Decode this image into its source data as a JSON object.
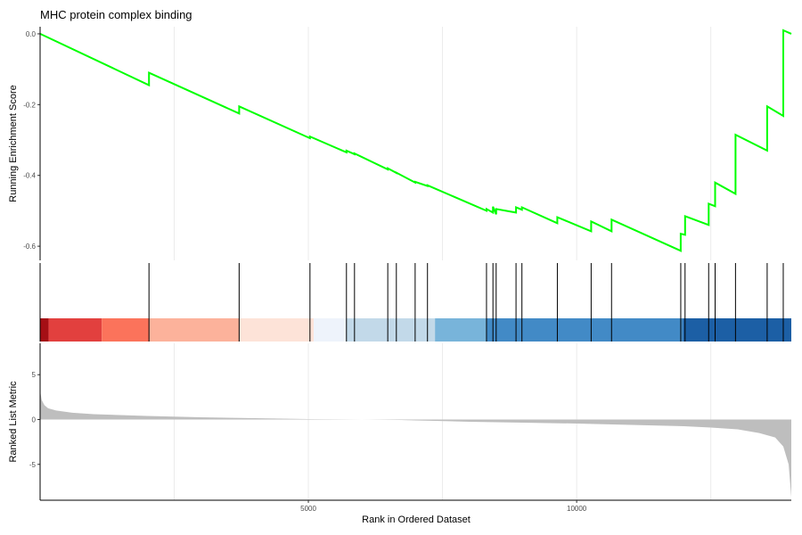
{
  "chart_data": {
    "type": "line",
    "title": "MHC protein complex binding",
    "xlabel": "Rank in Ordered Dataset",
    "x_ticks": [
      5000,
      10000
    ],
    "x_tick_labels": [
      "5000",
      "10000"
    ],
    "xlim": [
      1,
      14000
    ],
    "panels": [
      {
        "name": "running-enrichment-score",
        "ylabel": "Running Enrichment Score",
        "ylim": [
          -0.64,
          0.02
        ],
        "y_ticks": [
          0.0,
          -0.2,
          -0.4,
          -0.6
        ],
        "y_tick_labels": [
          "0.0",
          "-0.2",
          "-0.4",
          "-0.6"
        ],
        "line_color": "#00ff00",
        "series": [
          {
            "x": [
              1,
              2030,
              2030,
              3710,
              3710,
              5030,
              5030,
              5710,
              5710,
              5860,
              5860,
              6480,
              6480,
              6640,
              6640,
              6990,
              6990,
              7220,
              7220,
              8320,
              8320,
              8440,
              8440,
              8500,
              8500,
              8870,
              8870,
              8980,
              8980,
              9640,
              9640,
              10270,
              10270,
              10650,
              10650,
              11940,
              11940,
              12020,
              12020,
              12460,
              12460,
              12580,
              12580,
              12960,
              12960,
              13550,
              13550,
              13850,
              13850,
              14000
            ],
            "y": [
              0.0,
              -0.145,
              -0.11,
              -0.225,
              -0.205,
              -0.295,
              -0.29,
              -0.335,
              -0.33,
              -0.34,
              -0.338,
              -0.383,
              -0.38,
              -0.393,
              -0.392,
              -0.42,
              -0.418,
              -0.43,
              -0.428,
              -0.5,
              -0.495,
              -0.505,
              -0.488,
              -0.51,
              -0.495,
              -0.505,
              -0.49,
              -0.497,
              -0.49,
              -0.535,
              -0.518,
              -0.558,
              -0.53,
              -0.558,
              -0.525,
              -0.613,
              -0.565,
              -0.568,
              -0.515,
              -0.54,
              -0.48,
              -0.487,
              -0.42,
              -0.452,
              -0.285,
              -0.33,
              -0.205,
              -0.232,
              0.01,
              0.0
            ]
          }
        ]
      },
      {
        "name": "gene-hits",
        "hits": [
          2030,
          3710,
          5030,
          5710,
          5860,
          6480,
          6640,
          6990,
          7220,
          8320,
          8440,
          8500,
          8870,
          8980,
          9640,
          10270,
          10650,
          11940,
          12020,
          12460,
          12580,
          12960,
          13550,
          13850
        ],
        "rank_bands": [
          {
            "start": 1,
            "end": 160,
            "color": "#a50f15"
          },
          {
            "start": 160,
            "end": 1150,
            "color": "#e2403e"
          },
          {
            "start": 1150,
            "end": 2030,
            "color": "#fb735b"
          },
          {
            "start": 2030,
            "end": 3710,
            "color": "#fcb29b"
          },
          {
            "start": 3710,
            "end": 5100,
            "color": "#fde3d8"
          },
          {
            "start": 5100,
            "end": 5710,
            "color": "#eef3fb"
          },
          {
            "start": 5710,
            "end": 7360,
            "color": "#c2d9e9"
          },
          {
            "start": 7360,
            "end": 8320,
            "color": "#78b4da"
          },
          {
            "start": 8320,
            "end": 11980,
            "color": "#428ac6"
          },
          {
            "start": 11980,
            "end": 14000,
            "color": "#1c5fa5"
          }
        ]
      },
      {
        "name": "ranked-list-metric",
        "ylabel": "Ranked List Metric",
        "ylim": [
          -9,
          8.5
        ],
        "y_ticks": [
          5,
          0,
          -5
        ],
        "y_tick_labels": [
          "5",
          "0",
          "-5"
        ],
        "fill_color": "#bebebe",
        "series": [
          {
            "x": [
              1,
              30,
              80,
              150,
              300,
              600,
              1000,
              2000,
              3000,
              4000,
              5000,
              6000,
              6700,
              7000,
              8000,
              9000,
              10000,
              11000,
              12000,
              12500,
              13000,
              13400,
              13700,
              13850,
              13950,
              14000
            ],
            "y": [
              3.2,
              2.2,
              1.6,
              1.25,
              1.0,
              0.75,
              0.6,
              0.4,
              0.25,
              0.15,
              0.05,
              0.0,
              -0.05,
              -0.1,
              -0.25,
              -0.35,
              -0.45,
              -0.6,
              -0.75,
              -0.9,
              -1.1,
              -1.5,
              -2.0,
              -3.0,
              -5.0,
              -8.7
            ]
          }
        ]
      }
    ]
  }
}
